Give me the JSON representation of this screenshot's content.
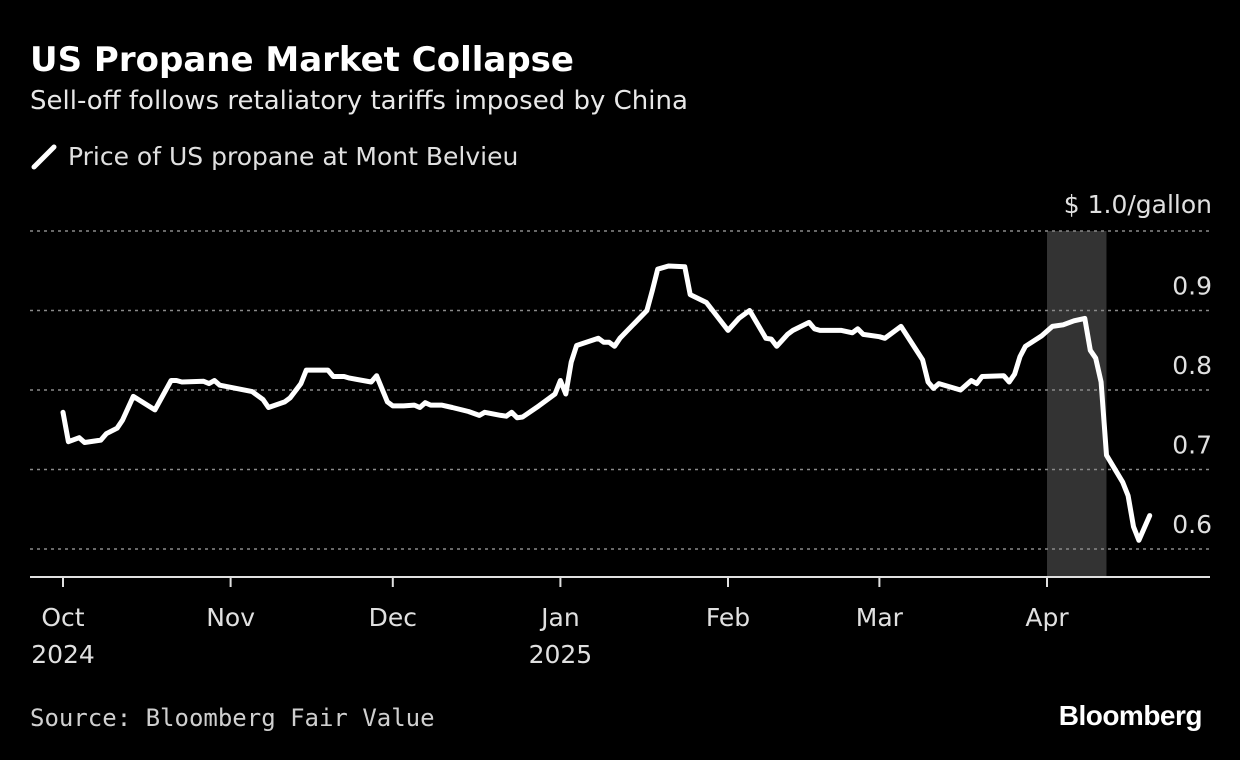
{
  "header": {
    "title": "US Propane Market Collapse",
    "subtitle": "Sell-off follows retaliatory tariffs imposed by China"
  },
  "legend": {
    "label": "Price of US propane at Mont Belvieu"
  },
  "footer": {
    "source": "Source: Bloomberg Fair Value",
    "brand": "Bloomberg"
  },
  "colors": {
    "background": "#000000",
    "line": "#ffffff",
    "grid": "#8a8a8a",
    "highlight": "#333333",
    "text": "#e0e0e0"
  },
  "chart_data": {
    "type": "line",
    "title": "US Propane Market Collapse",
    "subtitle": "Sell-off follows retaliatory tariffs imposed by China",
    "ylabel": "$/gallon",
    "ylim": [
      0.57,
      0.99
    ],
    "yticks": [
      0.6,
      0.7,
      0.8,
      0.9,
      1.0
    ],
    "ytick_labels": [
      "0.6",
      "0.7",
      "0.8",
      "0.9",
      "$ 1.0/gallon"
    ],
    "x_range": [
      "2024-09-30",
      "2025-04-30"
    ],
    "xticks": [
      {
        "date": "2024-10-01",
        "label": "Oct",
        "sublabel": "2024"
      },
      {
        "date": "2024-11-01",
        "label": "Nov",
        "sublabel": ""
      },
      {
        "date": "2024-12-01",
        "label": "Dec",
        "sublabel": ""
      },
      {
        "date": "2025-01-01",
        "label": "Jan",
        "sublabel": "2025"
      },
      {
        "date": "2025-02-01",
        "label": "Feb",
        "sublabel": ""
      },
      {
        "date": "2025-03-01",
        "label": "Mar",
        "sublabel": ""
      },
      {
        "date": "2025-04-01",
        "label": "Apr",
        "sublabel": ""
      }
    ],
    "highlight_range": [
      "2025-04-01",
      "2025-04-12"
    ],
    "grid": true,
    "series": [
      {
        "name": "Price of US propane at Mont Belvieu",
        "points": [
          [
            "2024-10-01",
            0.772
          ],
          [
            "2024-10-02",
            0.735
          ],
          [
            "2024-10-04",
            0.74
          ],
          [
            "2024-10-05",
            0.734
          ],
          [
            "2024-10-08",
            0.737
          ],
          [
            "2024-10-09",
            0.745
          ],
          [
            "2024-10-11",
            0.752
          ],
          [
            "2024-10-12",
            0.762
          ],
          [
            "2024-10-14",
            0.792
          ],
          [
            "2024-10-18",
            0.775
          ],
          [
            "2024-10-21",
            0.812
          ],
          [
            "2024-10-22",
            0.812
          ],
          [
            "2024-10-23",
            0.81
          ],
          [
            "2024-10-27",
            0.811
          ],
          [
            "2024-10-28",
            0.808
          ],
          [
            "2024-10-29",
            0.812
          ],
          [
            "2024-10-30",
            0.806
          ],
          [
            "2024-11-05",
            0.798
          ],
          [
            "2024-11-07",
            0.788
          ],
          [
            "2024-11-08",
            0.778
          ],
          [
            "2024-11-11",
            0.785
          ],
          [
            "2024-11-12",
            0.79
          ],
          [
            "2024-11-14",
            0.808
          ],
          [
            "2024-11-15",
            0.825
          ],
          [
            "2024-11-19",
            0.825
          ],
          [
            "2024-11-20",
            0.817
          ],
          [
            "2024-11-22",
            0.817
          ],
          [
            "2024-11-23",
            0.815
          ],
          [
            "2024-11-27",
            0.81
          ],
          [
            "2024-11-28",
            0.818
          ],
          [
            "2024-11-30",
            0.785
          ],
          [
            "2024-12-01",
            0.78
          ],
          [
            "2024-12-03",
            0.78
          ],
          [
            "2024-12-05",
            0.781
          ],
          [
            "2024-12-06",
            0.778
          ],
          [
            "2024-12-07",
            0.784
          ],
          [
            "2024-12-08",
            0.781
          ],
          [
            "2024-12-10",
            0.781
          ],
          [
            "2024-12-12",
            0.778
          ],
          [
            "2024-12-15",
            0.773
          ],
          [
            "2024-12-17",
            0.768
          ],
          [
            "2024-12-18",
            0.772
          ],
          [
            "2024-12-21",
            0.768
          ],
          [
            "2024-12-22",
            0.767
          ],
          [
            "2024-12-23",
            0.772
          ],
          [
            "2024-12-24",
            0.765
          ],
          [
            "2024-12-25",
            0.766
          ],
          [
            "2024-12-28",
            0.78
          ],
          [
            "2024-12-31",
            0.795
          ],
          [
            "2025-01-01",
            0.812
          ],
          [
            "2025-01-02",
            0.795
          ],
          [
            "2025-01-03",
            0.835
          ],
          [
            "2025-01-04",
            0.856
          ],
          [
            "2025-01-08",
            0.865
          ],
          [
            "2025-01-09",
            0.86
          ],
          [
            "2025-01-10",
            0.86
          ],
          [
            "2025-01-11",
            0.855
          ],
          [
            "2025-01-12",
            0.865
          ],
          [
            "2025-01-17",
            0.9
          ],
          [
            "2025-01-18",
            0.925
          ],
          [
            "2025-01-19",
            0.952
          ],
          [
            "2025-01-21",
            0.956
          ],
          [
            "2025-01-24",
            0.955
          ],
          [
            "2025-01-25",
            0.92
          ],
          [
            "2025-01-28",
            0.91
          ],
          [
            "2025-02-01",
            0.875
          ],
          [
            "2025-02-03",
            0.89
          ],
          [
            "2025-02-05",
            0.9
          ],
          [
            "2025-02-08",
            0.865
          ],
          [
            "2025-02-09",
            0.864
          ],
          [
            "2025-02-10",
            0.855
          ],
          [
            "2025-02-12",
            0.87
          ],
          [
            "2025-02-13",
            0.875
          ],
          [
            "2025-02-16",
            0.885
          ],
          [
            "2025-02-17",
            0.877
          ],
          [
            "2025-02-18",
            0.875
          ],
          [
            "2025-02-22",
            0.875
          ],
          [
            "2025-02-24",
            0.872
          ],
          [
            "2025-02-25",
            0.877
          ],
          [
            "2025-02-26",
            0.87
          ],
          [
            "2025-03-01",
            0.867
          ],
          [
            "2025-03-02",
            0.865
          ],
          [
            "2025-03-04",
            0.875
          ],
          [
            "2025-03-05",
            0.88
          ],
          [
            "2025-03-09",
            0.838
          ],
          [
            "2025-03-10",
            0.81
          ],
          [
            "2025-03-11",
            0.802
          ],
          [
            "2025-03-12",
            0.808
          ],
          [
            "2025-03-16",
            0.8
          ],
          [
            "2025-03-18",
            0.812
          ],
          [
            "2025-03-19",
            0.808
          ],
          [
            "2025-03-20",
            0.817
          ],
          [
            "2025-03-24",
            0.818
          ],
          [
            "2025-03-25",
            0.81
          ],
          [
            "2025-03-26",
            0.82
          ],
          [
            "2025-03-27",
            0.842
          ],
          [
            "2025-03-28",
            0.855
          ],
          [
            "2025-03-31",
            0.868
          ],
          [
            "2025-04-02",
            0.88
          ],
          [
            "2025-04-04",
            0.882
          ],
          [
            "2025-04-06",
            0.887
          ],
          [
            "2025-04-08",
            0.89
          ],
          [
            "2025-04-09",
            0.85
          ],
          [
            "2025-04-10",
            0.84
          ],
          [
            "2025-04-11",
            0.81
          ],
          [
            "2025-04-12",
            0.718
          ],
          [
            "2025-04-15",
            0.684
          ],
          [
            "2025-04-16",
            0.667
          ],
          [
            "2025-04-17",
            0.628
          ],
          [
            "2025-04-18",
            0.611
          ],
          [
            "2025-04-20",
            0.642
          ]
        ]
      }
    ]
  }
}
